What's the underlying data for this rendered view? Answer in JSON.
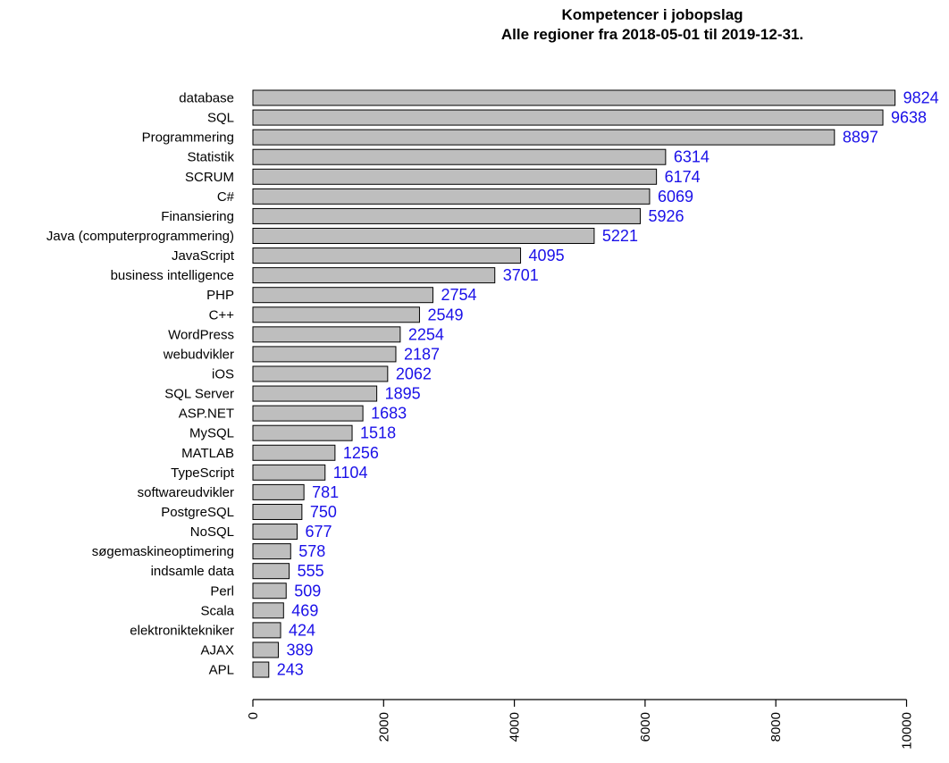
{
  "chart_data": {
    "type": "bar",
    "orientation": "horizontal",
    "title": "Kompetencer i jobopslag",
    "subtitle": "Alle regioner fra 2018-05-01 til 2019-12-31.",
    "xlabel": "",
    "ylabel": "",
    "xlim": [
      0,
      10000
    ],
    "x_ticks": [
      0,
      2000,
      4000,
      6000,
      8000,
      10000
    ],
    "grid": false,
    "bar_color": "#bebebe",
    "bar_border_color": "#000000",
    "value_label_color": "#1a10e8",
    "categories": [
      "database",
      "SQL",
      "Programmering",
      "Statistik",
      "SCRUM",
      "C#",
      "Finansiering",
      "Java (computerprogrammering)",
      "JavaScript",
      "business intelligence",
      "PHP",
      "C++",
      "WordPress",
      "webudvikler",
      "iOS",
      "SQL Server",
      "ASP.NET",
      "MySQL",
      "MATLAB",
      "TypeScript",
      "softwareudvikler",
      "PostgreSQL",
      "NoSQL",
      "søgemaskineoptimering",
      "indsamle data",
      "Perl",
      "Scala",
      "elektroniktekniker",
      "AJAX",
      "APL"
    ],
    "values": [
      9824,
      9638,
      8897,
      6314,
      6174,
      6069,
      5926,
      5221,
      4095,
      3701,
      2754,
      2549,
      2254,
      2187,
      2062,
      1895,
      1683,
      1518,
      1256,
      1104,
      781,
      750,
      677,
      578,
      555,
      509,
      469,
      424,
      389,
      243
    ]
  }
}
